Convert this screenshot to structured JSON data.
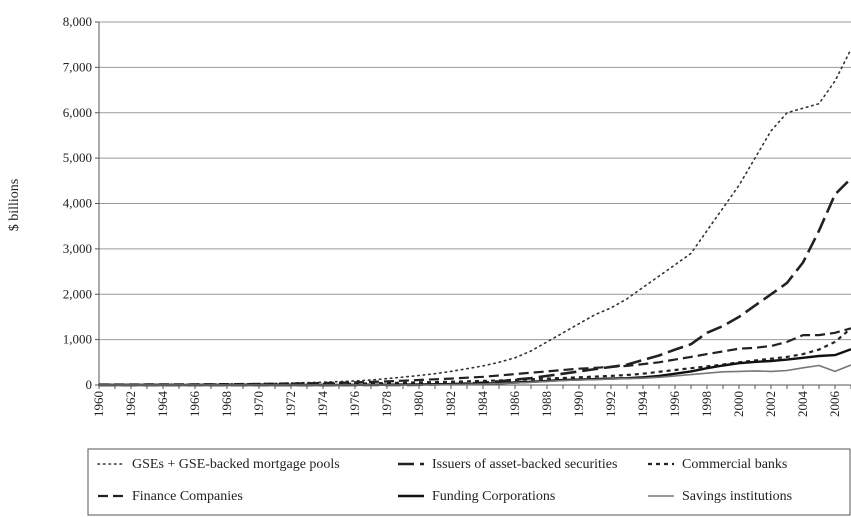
{
  "chart_data": {
    "type": "line",
    "title": "",
    "xlabel": "",
    "ylabel": "$ billions",
    "ylim": [
      0,
      8000
    ],
    "yticks": [
      0,
      1000,
      2000,
      3000,
      4000,
      5000,
      6000,
      7000,
      8000
    ],
    "ytick_labels": [
      "0",
      "1,000",
      "2,000",
      "3,000",
      "4,000",
      "5,000",
      "6,000",
      "7,000",
      "8,000"
    ],
    "xlim": [
      1960,
      2007
    ],
    "xticks": [
      1960,
      1962,
      1964,
      1966,
      1968,
      1970,
      1972,
      1974,
      1976,
      1978,
      1980,
      1982,
      1984,
      1986,
      1988,
      1990,
      1992,
      1994,
      1996,
      1998,
      2000,
      2002,
      2004,
      2006
    ],
    "xtick_labels": [
      "1960",
      "1962",
      "1964",
      "1966",
      "1968",
      "1970",
      "1972",
      "1974",
      "1976",
      "1978",
      "1980",
      "1982",
      "1984",
      "1986",
      "1988",
      "1990",
      "1992",
      "1994",
      "1996",
      "1998",
      "2000",
      "2002",
      "2004",
      "2006"
    ],
    "grid": "horizontal",
    "legend_position": "bottom",
    "x": [
      1960,
      1961,
      1962,
      1963,
      1964,
      1965,
      1966,
      1967,
      1968,
      1969,
      1970,
      1971,
      1972,
      1973,
      1974,
      1975,
      1976,
      1977,
      1978,
      1979,
      1980,
      1981,
      1982,
      1983,
      1984,
      1985,
      1986,
      1987,
      1988,
      1989,
      1990,
      1991,
      1992,
      1993,
      1994,
      1995,
      1996,
      1997,
      1998,
      1999,
      2000,
      2001,
      2002,
      2003,
      2004,
      2005,
      2006,
      2007
    ],
    "series": [
      {
        "name": "GSEs + GSE-backed mortgage pools",
        "dash": "dotted",
        "values": [
          10,
          11,
          12,
          13,
          14,
          15,
          17,
          19,
          21,
          25,
          30,
          36,
          43,
          52,
          62,
          75,
          90,
          110,
          140,
          175,
          210,
          250,
          300,
          360,
          420,
          500,
          600,
          750,
          950,
          1150,
          1350,
          1550,
          1700,
          1900,
          2150,
          2400,
          2650,
          2900,
          3400,
          3900,
          4400,
          5000,
          5600,
          6000,
          6100,
          6200,
          6700,
          7400
        ]
      },
      {
        "name": "Issuers of asset-backed securities",
        "dash": "long-dash",
        "values": [
          0,
          0,
          0,
          0,
          0,
          0,
          0,
          0,
          0,
          0,
          0,
          0,
          0,
          0,
          0,
          0,
          0,
          0,
          0,
          0,
          5,
          10,
          20,
          30,
          50,
          80,
          120,
          150,
          200,
          250,
          300,
          350,
          400,
          450,
          550,
          650,
          780,
          900,
          1150,
          1300,
          1500,
          1750,
          2000,
          2250,
          2700,
          3400,
          4200,
          4550
        ]
      },
      {
        "name": "Commercial banks",
        "dash": "short-dash",
        "values": [
          2,
          2,
          3,
          3,
          4,
          4,
          5,
          6,
          7,
          8,
          10,
          12,
          15,
          18,
          22,
          26,
          30,
          35,
          42,
          50,
          58,
          65,
          72,
          80,
          90,
          100,
          110,
          125,
          140,
          155,
          170,
          185,
          200,
          220,
          250,
          290,
          330,
          370,
          410,
          450,
          500,
          540,
          580,
          620,
          680,
          780,
          950,
          1250
        ]
      },
      {
        "name": "Finance Companies",
        "dash": "dash",
        "values": [
          10,
          11,
          12,
          13,
          14,
          15,
          16,
          18,
          20,
          22,
          25,
          29,
          33,
          38,
          43,
          50,
          58,
          68,
          80,
          95,
          110,
          125,
          140,
          160,
          180,
          210,
          240,
          270,
          300,
          330,
          360,
          380,
          400,
          420,
          460,
          500,
          560,
          620,
          680,
          740,
          800,
          820,
          860,
          950,
          1100,
          1100,
          1150,
          1250
        ]
      },
      {
        "name": "Funding Corporations",
        "dash": "solid-thick",
        "values": [
          0,
          0,
          0,
          0,
          0,
          0,
          0,
          0,
          0,
          0,
          0,
          0,
          0,
          0,
          0,
          0,
          2,
          4,
          6,
          8,
          10,
          15,
          20,
          25,
          30,
          40,
          55,
          70,
          90,
          110,
          120,
          130,
          140,
          150,
          170,
          200,
          250,
          300,
          370,
          430,
          480,
          510,
          530,
          560,
          600,
          640,
          660,
          790
        ]
      },
      {
        "name": "Savings institutions",
        "dash": "solid-thin",
        "values": [
          0,
          0,
          0,
          0,
          0,
          0,
          0,
          0,
          0,
          0,
          0,
          0,
          0,
          0,
          0,
          0,
          0,
          0,
          0,
          0,
          0,
          5,
          10,
          15,
          20,
          30,
          45,
          60,
          80,
          100,
          110,
          120,
          130,
          140,
          150,
          170,
          200,
          230,
          260,
          290,
          300,
          310,
          300,
          320,
          380,
          430,
          300,
          440
        ]
      }
    ]
  }
}
